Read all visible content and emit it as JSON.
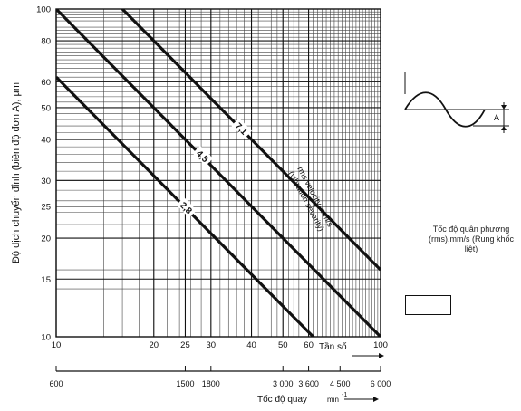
{
  "chart_data": {
    "type": "line",
    "xscale": "log",
    "yscale": "log",
    "xlim": [
      10,
      100
    ],
    "ylim": [
      10,
      100
    ],
    "ylabel": "Độ dịch chuyển đỉnh (biên độ đơn A), µm",
    "xlabel": "Tần số",
    "x2label": "Tốc độ quay",
    "x2unit": "min",
    "x2unit_exp": "-1",
    "x_ticks": [
      10,
      20,
      25,
      30,
      40,
      50,
      60,
      100
    ],
    "x_tick_labels": [
      "10",
      "20",
      "25",
      "30",
      "40",
      "50",
      "60",
      "100"
    ],
    "y_ticks": [
      10,
      15,
      20,
      25,
      30,
      40,
      50,
      60,
      80,
      100
    ],
    "y_tick_labels": [
      "10",
      "15",
      "20",
      "25",
      "30",
      "40",
      "50",
      "60",
      "80",
      "100"
    ],
    "x2_ticks": [
      10,
      25,
      30,
      50,
      60,
      75,
      100
    ],
    "x2_tick_labels": [
      "600",
      "1500",
      "1800",
      "3 000",
      "3 600",
      "4 500",
      "6 000"
    ],
    "grid": true,
    "series": [
      {
        "name": "2,8",
        "x": [
          10,
          100
        ],
        "y": [
          62,
          6.2
        ]
      },
      {
        "name": "4,5",
        "x": [
          10,
          100
        ],
        "y": [
          100,
          10
        ]
      },
      {
        "name": "7,1",
        "x": [
          10,
          100
        ],
        "y": [
          160,
          16
        ]
      }
    ],
    "annotations": [
      "rms velocity, mm/s",
      "(vibration severity)"
    ]
  },
  "inset": {
    "marker": "A",
    "caption": "Tốc độ quân phương (rms),mm/s (Rung khốc liệt)"
  }
}
